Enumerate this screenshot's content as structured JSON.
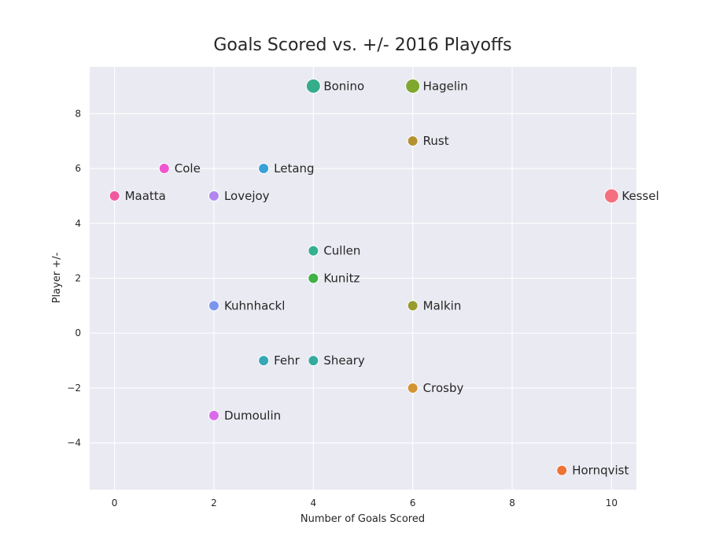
{
  "chart_data": {
    "type": "scatter",
    "title": "Goals Scored vs. +/- 2016 Playoffs",
    "xlabel": "Number of Goals Scored",
    "ylabel": "Player +/-",
    "xlim": [
      -0.5,
      10.5
    ],
    "ylim": [
      -5.7,
      9.7
    ],
    "xticks": [
      0,
      2,
      4,
      6,
      8,
      10
    ],
    "xtick_labels": [
      "0",
      "2",
      "4",
      "6",
      "8",
      "10"
    ],
    "yticks": [
      -4,
      -2,
      0,
      2,
      4,
      6,
      8
    ],
    "ytick_labels": [
      "−4",
      "−2",
      "0",
      "2",
      "4",
      "6",
      "8"
    ],
    "background": "#eaeaf2",
    "grid": true,
    "points": [
      {
        "name": "Bonino",
        "x": 4,
        "y": 9,
        "size": "large",
        "color": "#36ad8a"
      },
      {
        "name": "Hagelin",
        "x": 6,
        "y": 9,
        "size": "large",
        "color": "#7fa82f"
      },
      {
        "name": "Rust",
        "x": 6,
        "y": 7,
        "size": "small",
        "color": "#b49232"
      },
      {
        "name": "Cole",
        "x": 1,
        "y": 6,
        "size": "small",
        "color": "#f056d0"
      },
      {
        "name": "Letang",
        "x": 3,
        "y": 6,
        "size": "small",
        "color": "#38a0d8"
      },
      {
        "name": "Maatta",
        "x": 0,
        "y": 5,
        "size": "small",
        "color": "#f0599f"
      },
      {
        "name": "Lovejoy",
        "x": 2,
        "y": 5,
        "size": "small",
        "color": "#b185f0"
      },
      {
        "name": "Kessel",
        "x": 10,
        "y": 5,
        "size": "large",
        "color": "#f5707f"
      },
      {
        "name": "Cullen",
        "x": 4,
        "y": 3,
        "size": "small",
        "color": "#34b08e"
      },
      {
        "name": "Kunitz",
        "x": 4,
        "y": 2,
        "size": "small",
        "color": "#3fb145"
      },
      {
        "name": "Kuhnhackl",
        "x": 2,
        "y": 1,
        "size": "small",
        "color": "#7b95ef"
      },
      {
        "name": "Malkin",
        "x": 6,
        "y": 1,
        "size": "small",
        "color": "#9a9b2f"
      },
      {
        "name": "Fehr",
        "x": 3,
        "y": -1,
        "size": "small",
        "color": "#36a7b6"
      },
      {
        "name": "Sheary",
        "x": 4,
        "y": -1,
        "size": "small",
        "color": "#35ab9f"
      },
      {
        "name": "Crosby",
        "x": 6,
        "y": -2,
        "size": "small",
        "color": "#d39533"
      },
      {
        "name": "Dumoulin",
        "x": 2,
        "y": -3,
        "size": "small",
        "color": "#d96be8"
      },
      {
        "name": "Hornqvist",
        "x": 9,
        "y": -5,
        "size": "small",
        "color": "#ef7235"
      }
    ]
  }
}
